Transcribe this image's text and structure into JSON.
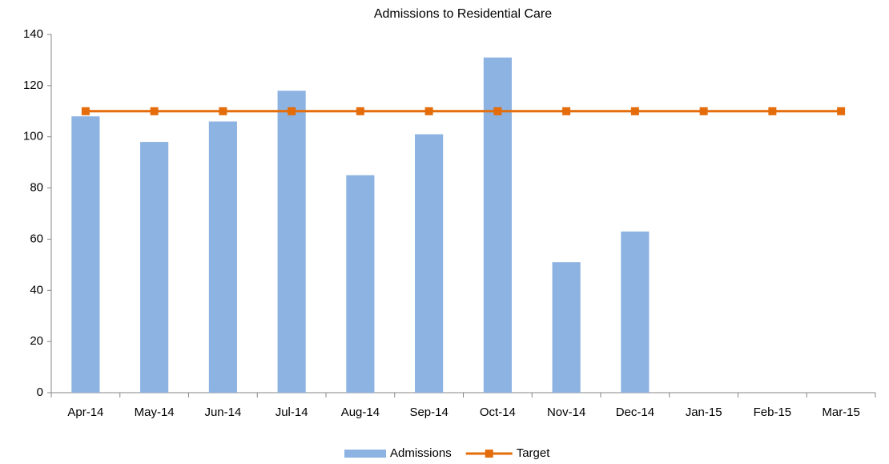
{
  "chart_data": {
    "type": "bar",
    "title": "Admissions to Residential Care",
    "categories": [
      "Apr-14",
      "May-14",
      "Jun-14",
      "Jul-14",
      "Aug-14",
      "Sep-14",
      "Oct-14",
      "Nov-14",
      "Dec-14",
      "Jan-15",
      "Feb-15",
      "Mar-15"
    ],
    "series": [
      {
        "name": "Admissions",
        "type": "bar",
        "color": "#8db3e2",
        "values": [
          108,
          98,
          106,
          118,
          85,
          101,
          131,
          51,
          63,
          null,
          null,
          null
        ]
      },
      {
        "name": "Target",
        "type": "line",
        "color": "#e46c0a",
        "values": [
          110,
          110,
          110,
          110,
          110,
          110,
          110,
          110,
          110,
          110,
          110,
          110
        ]
      }
    ],
    "ylim": [
      0,
      140
    ],
    "yticks": [
      0,
      20,
      40,
      60,
      80,
      100,
      120,
      140
    ],
    "grid": false,
    "legend": "bottom"
  }
}
